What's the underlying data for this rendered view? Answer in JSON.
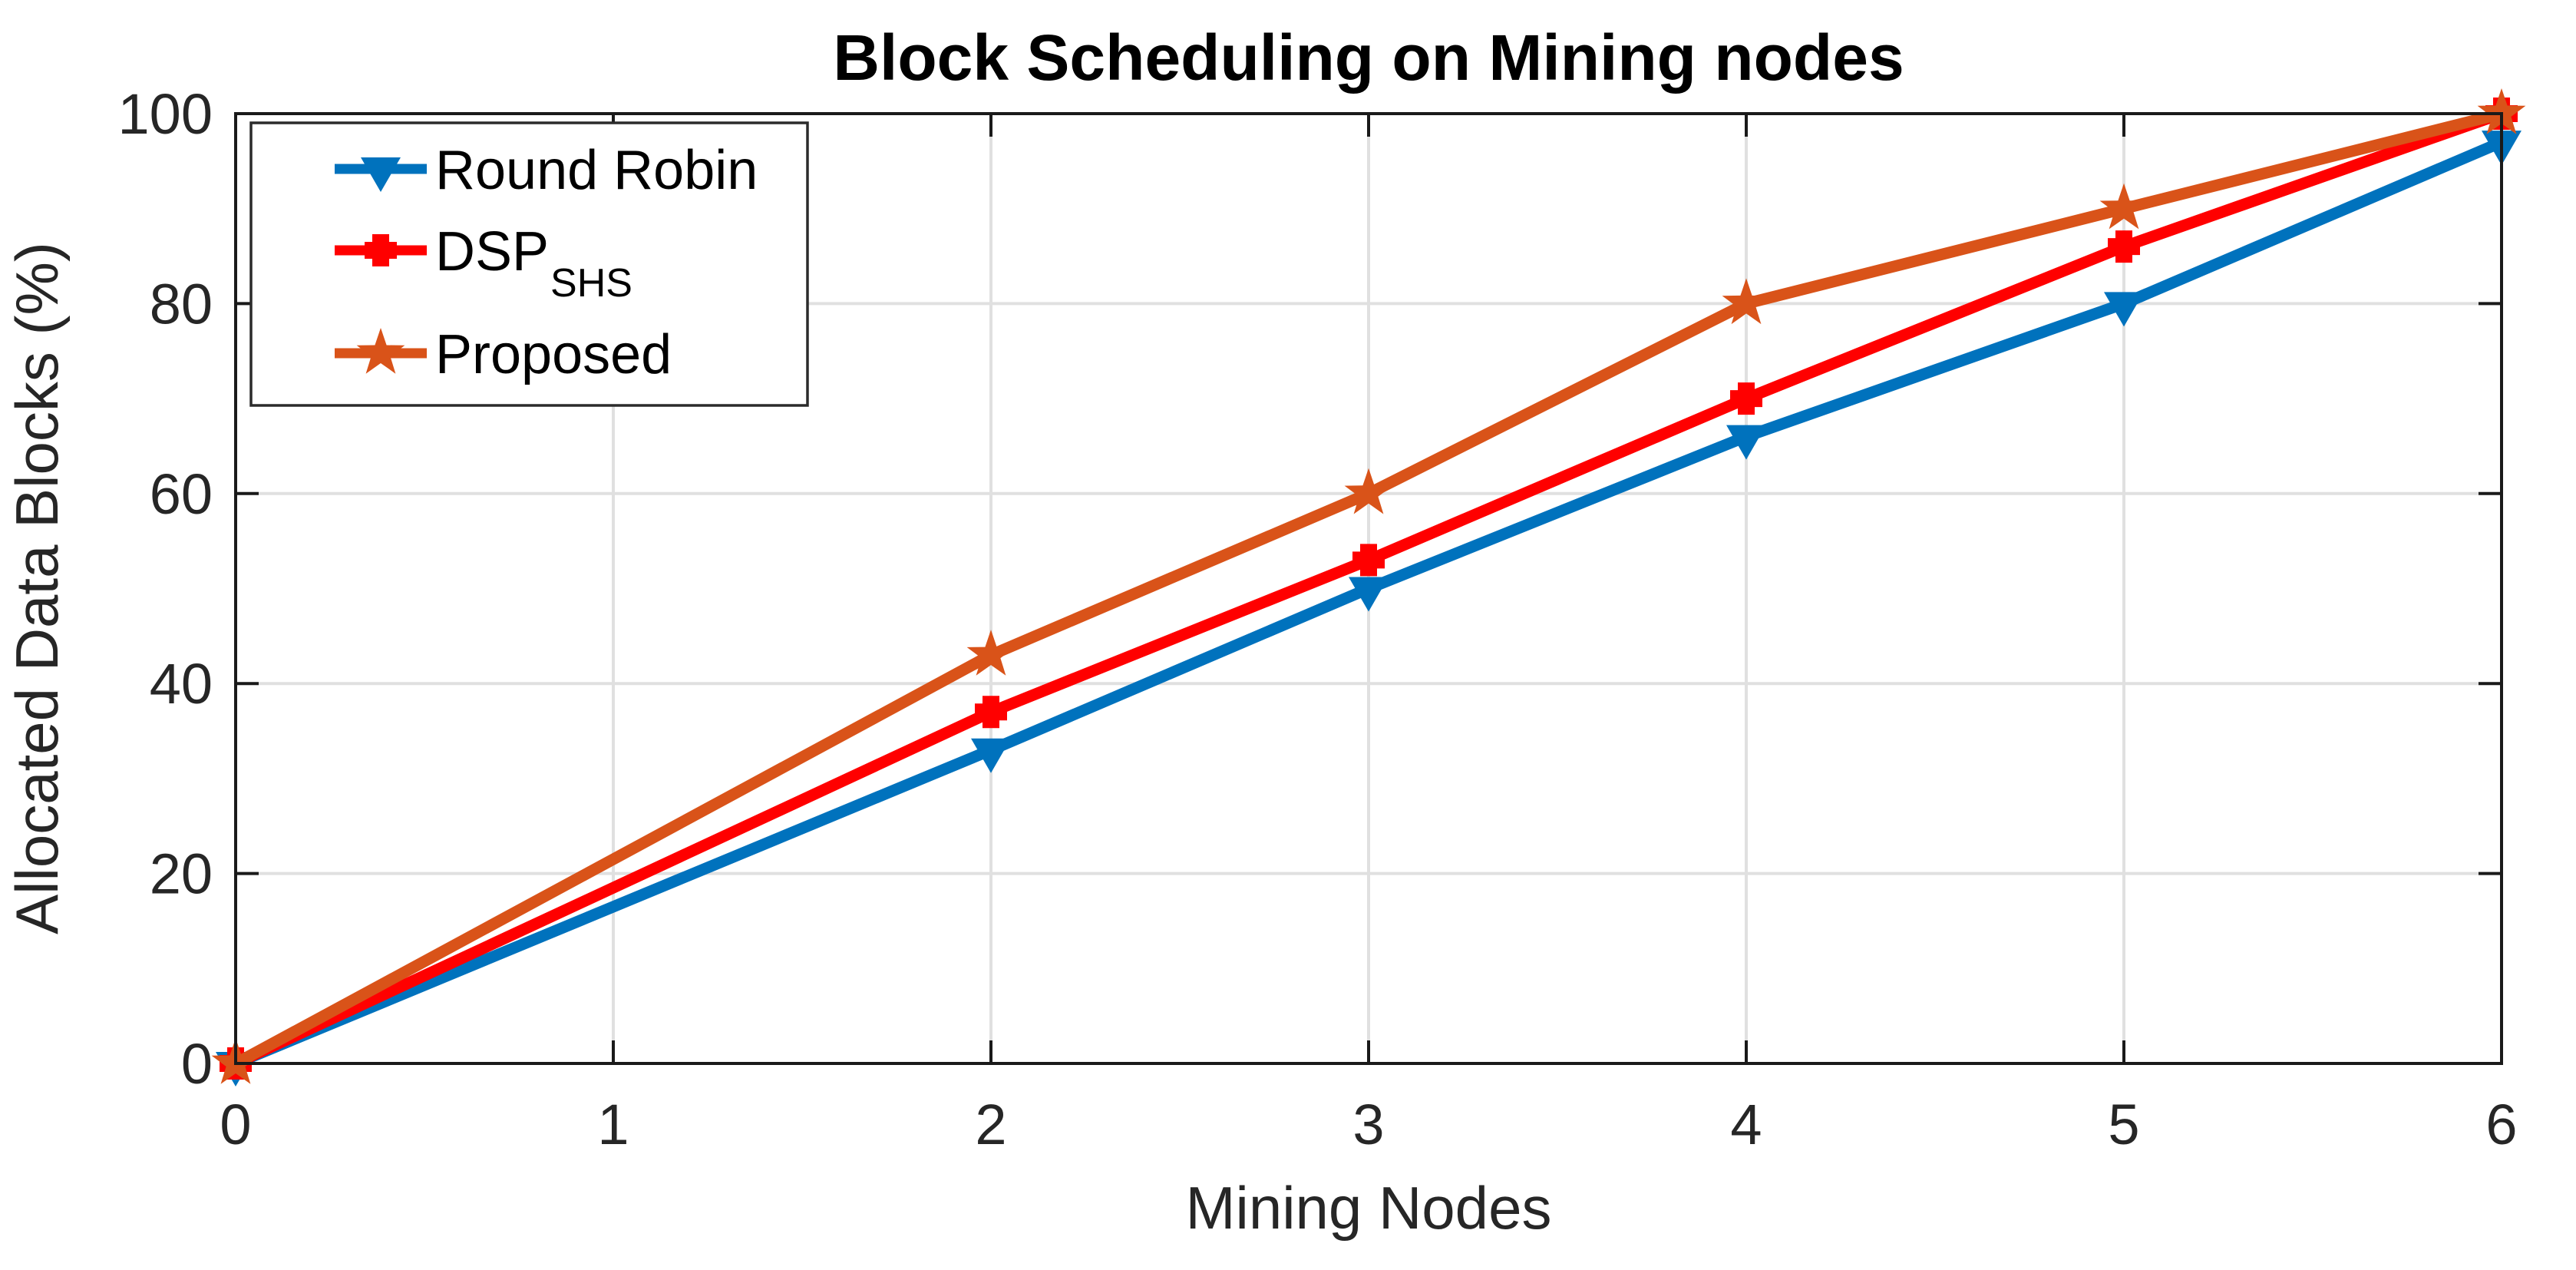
{
  "chart_data": {
    "type": "line",
    "title": "Block Scheduling on Mining nodes",
    "xlabel": "Mining Nodes",
    "ylabel": "Allocated Data Blocks (%)",
    "x": [
      0,
      2,
      3,
      4,
      5,
      6
    ],
    "series": [
      {
        "name": "Round Robin",
        "subscript": "",
        "color": "#0072BD",
        "marker": "triangle-down",
        "values": [
          0,
          33,
          50,
          66,
          80,
          97
        ]
      },
      {
        "name": "DSP",
        "subscript": "SHS",
        "color": "#FF0000",
        "marker": "plus",
        "values": [
          0,
          37,
          53,
          70,
          86,
          100
        ]
      },
      {
        "name": "Proposed",
        "subscript": "",
        "color": "#D95319",
        "marker": "star5",
        "values": [
          0,
          43,
          60,
          80,
          90,
          100
        ]
      }
    ],
    "xlim": [
      0,
      6
    ],
    "ylim": [
      0,
      100
    ],
    "xticks": [
      0,
      1,
      2,
      3,
      4,
      5,
      6
    ],
    "yticks": [
      0,
      20,
      40,
      60,
      80,
      100
    ],
    "grid": true,
    "legend_position": "top-left",
    "colors": {
      "grid": "#E0E0E0",
      "axis": "#1A1A1A",
      "tick_label": "#262626",
      "title": "#000000",
      "axis_label": "#262626",
      "legend_border": "#2B2B2B",
      "legend_bg": "#FFFFFF",
      "legend_text": "#000000",
      "background": "#FFFFFF"
    }
  }
}
